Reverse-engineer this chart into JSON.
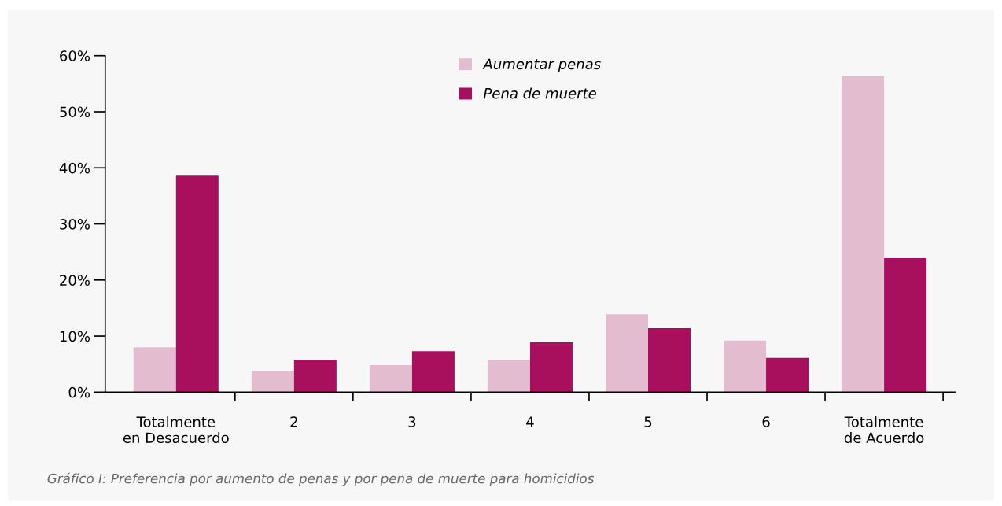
{
  "chart_data": {
    "type": "bar",
    "categories": [
      "Totalmente\nen Desacuerdo",
      "2",
      "3",
      "4",
      "5",
      "6",
      "Totalmente\nde Acuerdo"
    ],
    "series": [
      {
        "name": "Aumentar penas",
        "color": "#e4bccf",
        "values": [
          8.0,
          3.7,
          4.8,
          5.8,
          13.9,
          9.2,
          56.3
        ]
      },
      {
        "name": "Pena de muerte",
        "color": "#a8105d",
        "values": [
          38.6,
          5.8,
          7.3,
          8.9,
          11.4,
          6.1,
          23.9
        ]
      }
    ],
    "ylim": [
      0,
      60
    ],
    "yticks": [
      {
        "value": 0,
        "label": "0%"
      },
      {
        "value": 10,
        "label": "10%"
      },
      {
        "value": 20,
        "label": "20%"
      },
      {
        "value": 30,
        "label": "30%"
      },
      {
        "value": 40,
        "label": "40%"
      },
      {
        "value": 50,
        "label": "50%"
      },
      {
        "value": 60,
        "label": "60%"
      }
    ],
    "legend": "top",
    "grid": false,
    "annotations": [
      "Gráfico I: Preferencia por aumento de penas y por pena de muerte para homicidios"
    ]
  }
}
